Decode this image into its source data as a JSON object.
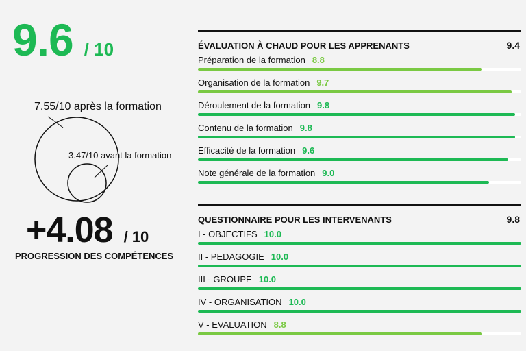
{
  "summary": {
    "overall_score": "9.6",
    "overall_denominator": "/ 10",
    "after_label": "7.55/10 après la formation",
    "before_label": "3.47/10 avant la formation",
    "after_value": 7.55,
    "before_value": 3.47,
    "progression_value": "+4.08",
    "progression_denominator": "/ 10",
    "progression_label": "PROGRESSION DES COMPÉTENCES"
  },
  "colors": {
    "green": "#1db954",
    "light_green": "#7ac943",
    "bar_track": "#ffffff",
    "text": "#111111"
  },
  "sections": [
    {
      "title": "ÉVALUATION À CHAUD POUR LES APPRENANTS",
      "total": "9.4",
      "items": [
        {
          "label": "Préparation de la formation",
          "score": "8.8",
          "value": 8.8,
          "light": true
        },
        {
          "label": "Organisation de la formation",
          "score": "9.7",
          "value": 9.7,
          "light": true
        },
        {
          "label": "Déroulement de la formation",
          "score": "9.8",
          "value": 9.8,
          "light": false
        },
        {
          "label": "Contenu de la formation",
          "score": "9.8",
          "value": 9.8,
          "light": false
        },
        {
          "label": "Efficacité de la formation",
          "score": "9.6",
          "value": 9.6,
          "light": false
        },
        {
          "label": "Note générale de la formation",
          "score": "9.0",
          "value": 9.0,
          "light": false
        }
      ]
    },
    {
      "title": "QUESTIONNAIRE POUR LES INTERVENANTS",
      "total": "9.8",
      "items": [
        {
          "label": "I - OBJECTIFS",
          "score": "10.0",
          "value": 10.0,
          "light": false
        },
        {
          "label": "II - PEDAGOGIE",
          "score": "10.0",
          "value": 10.0,
          "light": false
        },
        {
          "label": "III - GROUPE",
          "score": "10.0",
          "value": 10.0,
          "light": false
        },
        {
          "label": "IV - ORGANISATION",
          "score": "10.0",
          "value": 10.0,
          "light": false
        },
        {
          "label": "V - EVALUATION",
          "score": "8.8",
          "value": 8.8,
          "light": true
        }
      ]
    }
  ]
}
